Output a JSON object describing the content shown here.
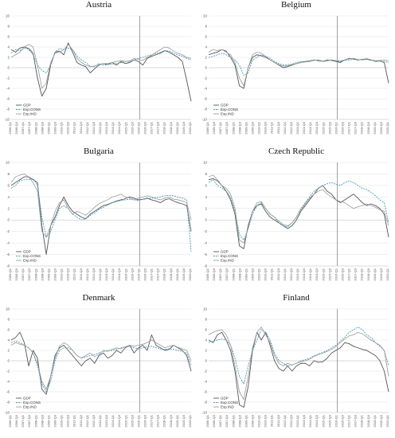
{
  "colors": {
    "gdp": "#555555",
    "cons": "#4a9bb0",
    "ind": "#9a9a9a",
    "vline": "#666666",
    "grid": "#d9d9d9"
  },
  "x_tick_labels": [
    "2006-Q1",
    "2006-Q3",
    "2007-Q1",
    "2007-Q3",
    "2008-Q1",
    "2008-Q3",
    "2009-Q1",
    "2009-Q3",
    "2010-Q1",
    "2010-Q3",
    "2011-Q1",
    "2011-Q3",
    "2012-Q1",
    "2012-Q3",
    "2013-Q1",
    "2013-Q3",
    "2014-Q1",
    "2014-Q3",
    "2015-Q1",
    "2015-Q3",
    "2016-Q1",
    "2016-Q3",
    "2017-Q1",
    "2017-Q3",
    "2018-Q1",
    "2018-Q3",
    "2019-Q1",
    "2019-Q3",
    "2020-Q1"
  ],
  "chart_data": [
    {
      "type": "line",
      "title": "Austria",
      "ylim": [
        -10,
        10
      ],
      "yticks": [
        -10,
        -8,
        -6,
        -4,
        -2,
        0,
        2,
        4,
        6,
        8,
        10
      ],
      "vline_at": "2016-Q1",
      "legend": [
        "GDP",
        "Exp.CONS",
        "Exp.IND"
      ],
      "series": [
        {
          "name": "GDP",
          "values": [
            3.5,
            3,
            3.8,
            4,
            3.7,
            2.8,
            -2,
            -5.5,
            -4,
            0.5,
            3,
            3.2,
            2.5,
            4.8,
            3,
            1,
            0.5,
            0.2,
            -1,
            -0.2,
            0.5,
            0.8,
            0.6,
            1,
            0.5,
            1.2,
            0.8,
            1,
            1.5,
            1.2,
            0.5,
            1.8,
            2.2,
            2.5,
            2.8,
            3.3,
            3,
            2.5,
            2,
            1.2,
            -2.5,
            -6.5
          ]
        },
        {
          "name": "Exp.CONS",
          "values": [
            2.8,
            3.5,
            3.3,
            3.8,
            3.5,
            2.5,
            0.5,
            -0.5,
            -1,
            0.5,
            3,
            3.7,
            3.5,
            3.8,
            3.5,
            2.3,
            1.5,
            1,
            0.3,
            0.2,
            0.8,
            0.5,
            0.6,
            0.7,
            0.8,
            1,
            1.2,
            1.2,
            1.5,
            1.8,
            2,
            2.3,
            2.5,
            2.7,
            3,
            3.3,
            3.2,
            2.8,
            2.5,
            2.2,
            1.8,
            1.5
          ]
        },
        {
          "name": "Exp.IND",
          "values": [
            2,
            2.5,
            3,
            4,
            4.5,
            4,
            0.5,
            -4,
            -3,
            1,
            2.8,
            3,
            3.5,
            4.5,
            3.5,
            1.8,
            1,
            0.5,
            0.2,
            0.3,
            0.6,
            0.8,
            0.8,
            1,
            1.2,
            1.4,
            1.2,
            1.3,
            1.8,
            1.6,
            1.4,
            2,
            2.4,
            3,
            3.5,
            4,
            3.8,
            3.2,
            2.8,
            2.5,
            2,
            1.8
          ]
        }
      ]
    },
    {
      "type": "line",
      "title": "Belgium",
      "ylim": [
        -10,
        10
      ],
      "yticks": [
        -10,
        -8,
        -6,
        -4,
        -2,
        0,
        2,
        4,
        6,
        8,
        10
      ],
      "vline_at": "2016-Q1",
      "legend": [
        "GDP",
        "Exp.CONS",
        "Exp.IND"
      ],
      "series": [
        {
          "name": "GDP",
          "values": [
            2.5,
            2.8,
            3,
            3.5,
            3.2,
            2,
            0.5,
            -3.5,
            -4,
            0,
            2,
            2.5,
            2.3,
            2,
            1.5,
            1,
            0.5,
            0,
            0.2,
            0.5,
            0.8,
            1,
            1.2,
            1.3,
            1.5,
            1.4,
            1.2,
            1.5,
            1.4,
            1.2,
            1,
            1.5,
            1.8,
            1.7,
            1.5,
            1.6,
            1.7,
            1.5,
            1.2,
            1.3,
            1,
            -3
          ]
        },
        {
          "name": "Exp.CONS",
          "values": [
            2,
            2.2,
            2.5,
            2.8,
            2.5,
            2,
            1.5,
            0.5,
            -1.5,
            -1,
            1.5,
            2,
            2.5,
            2.2,
            1.8,
            1.2,
            0.8,
            0.5,
            0.5,
            0.7,
            1,
            1.2,
            1.2,
            1.2,
            1.4,
            1.5,
            1.3,
            1.4,
            1.5,
            1.3,
            1.2,
            1.4,
            1.5,
            1.6,
            1.5,
            1.6,
            1.6,
            1.5,
            1.4,
            1.3,
            1.2,
            1
          ]
        },
        {
          "name": "Exp.IND",
          "values": [
            3,
            3.5,
            3.3,
            3.5,
            3,
            2.5,
            1,
            -2,
            -3.5,
            0,
            2.5,
            3,
            2.8,
            2.2,
            1.5,
            1,
            0.6,
            0.3,
            0.4,
            0.6,
            0.8,
            1,
            1.1,
            1.2,
            1.5,
            1.3,
            1.2,
            1.3,
            1.5,
            1.4,
            1.3,
            1.5,
            1.7,
            1.8,
            1.6,
            1.5,
            1.6,
            1.4,
            1.3,
            1.4,
            1.5,
            1.3
          ]
        }
      ]
    },
    {
      "type": "line",
      "title": "Bulgaria",
      "ylim": [
        -8,
        10
      ],
      "yticks": [
        -8,
        -6,
        -4,
        -2,
        0,
        2,
        4,
        6,
        8,
        10
      ],
      "vline_at": "2016-Q1",
      "legend": [
        "GDP",
        "Exp.CONS",
        "Exp.IND"
      ],
      "series": [
        {
          "name": "GDP",
          "values": [
            6,
            6.5,
            7,
            7.5,
            7.5,
            7,
            6.5,
            -1,
            -6,
            -1,
            0.5,
            2.5,
            4,
            2.5,
            1.5,
            1,
            0.5,
            0.2,
            1,
            1.5,
            2,
            2.5,
            2.7,
            3,
            3.3,
            3.5,
            3.7,
            4,
            3.8,
            3.5,
            3.6,
            3.8,
            3.5,
            3.3,
            3,
            3.5,
            3.7,
            3.3,
            3,
            2.8,
            2.5,
            -2
          ]
        },
        {
          "name": "Exp.CONS",
          "values": [
            5.5,
            6,
            6.8,
            7,
            7,
            7.2,
            6,
            0.5,
            -3,
            -2,
            0,
            2,
            2.5,
            2,
            1,
            0.5,
            0,
            0.2,
            0.8,
            1.2,
            1.8,
            2.2,
            2.6,
            3,
            3.2,
            3.4,
            3.5,
            3.6,
            3.5,
            3.4,
            3.6,
            3.7,
            3.8,
            3.9,
            4,
            4.2,
            4.3,
            4.2,
            4,
            3.8,
            3.5,
            -5.5
          ]
        },
        {
          "name": "Exp.IND",
          "values": [
            6.5,
            7.5,
            7.8,
            8,
            7.5,
            6.5,
            5,
            -2,
            -3,
            -1,
            1.5,
            3,
            3.5,
            2,
            1,
            1.5,
            1.2,
            0.8,
            1.5,
            2.2,
            2.8,
            3.2,
            3.5,
            4,
            4.2,
            4.5,
            4,
            3.8,
            3.5,
            3.8,
            4,
            4.2,
            4,
            3.7,
            3.5,
            3.8,
            4,
            3.6,
            3.5,
            3.3,
            3,
            0
          ]
        }
      ]
    },
    {
      "type": "line",
      "title": "Czech Republic",
      "ylim": [
        -8,
        10
      ],
      "yticks": [
        -8,
        -6,
        -4,
        -2,
        0,
        2,
        4,
        6,
        8,
        10
      ],
      "vline_at": "2016-Q1",
      "legend": [
        "GDP",
        "Exp.CONS",
        "Exp.IND"
      ],
      "series": [
        {
          "name": "GDP",
          "values": [
            7,
            7.2,
            6.8,
            6,
            5,
            3.5,
            1,
            -4.5,
            -5,
            -1,
            1.5,
            2.5,
            2.8,
            1.5,
            0.5,
            0,
            -0.5,
            -1,
            -1.5,
            -1,
            0,
            1.5,
            2.5,
            3.5,
            4.5,
            5.5,
            6,
            5,
            4.5,
            3.5,
            3,
            3.5,
            4,
            4.5,
            3.8,
            3,
            2.5,
            2.8,
            2.5,
            2,
            1,
            -3
          ]
        },
        {
          "name": "Exp.CONS",
          "values": [
            6.5,
            7,
            6,
            5.5,
            5,
            4,
            1.5,
            -2.5,
            -3.5,
            -1.5,
            1,
            2.5,
            3,
            2,
            1,
            0.5,
            -0.5,
            -1,
            -1.2,
            -0.5,
            0.5,
            2,
            3,
            4,
            5,
            5.5,
            6,
            6.3,
            6.5,
            6.2,
            6,
            6.5,
            6.8,
            6.5,
            6,
            5.5,
            5.3,
            4.8,
            4.2,
            3.5,
            3,
            -0.5
          ]
        },
        {
          "name": "Exp.IND",
          "values": [
            7.5,
            7.8,
            7,
            6,
            5.5,
            4.5,
            2,
            -3.5,
            -4,
            -1.5,
            1.5,
            3,
            3.2,
            2,
            1,
            0.5,
            -0.2,
            -0.8,
            -1,
            -0.5,
            0.5,
            1.8,
            2.8,
            3.8,
            4.5,
            5,
            5.3,
            4.5,
            4,
            3.5,
            3.2,
            3,
            2.5,
            2,
            2.3,
            2.5,
            2.8,
            2.5,
            2.2,
            1.8,
            1.5,
            -1
          ]
        }
      ]
    },
    {
      "type": "line",
      "title": "Denmark",
      "ylim": [
        -10,
        10
      ],
      "yticks": [
        -10,
        -8,
        -6,
        -4,
        -2,
        0,
        2,
        4,
        6,
        8,
        10
      ],
      "vline_at": "2016-Q1",
      "legend": [
        "GDP",
        "Exp.CONS",
        "Exp.IND"
      ],
      "series": [
        {
          "name": "GDP",
          "values": [
            4,
            4.5,
            5.5,
            3.5,
            -1,
            2,
            0.5,
            -5.5,
            -6.5,
            -3,
            1,
            2.5,
            3,
            2,
            1,
            0,
            -1,
            0,
            0.5,
            -0.5,
            1,
            1.5,
            0.5,
            1,
            2,
            1.5,
            2.5,
            3,
            1.5,
            2.5,
            3,
            2,
            5,
            3,
            2.5,
            2,
            2.2,
            3,
            2.5,
            2,
            1,
            -2
          ]
        },
        {
          "name": "Exp.CONS",
          "values": [
            3.5,
            3.8,
            3.5,
            3,
            2.5,
            1.5,
            -1,
            -4.5,
            -6,
            -4,
            0,
            2,
            2.5,
            2.5,
            2,
            1,
            0.5,
            0.7,
            1,
            1.2,
            1.5,
            1.8,
            2,
            2,
            2.2,
            2.5,
            2.7,
            2.8,
            2.5,
            2.3,
            2.5,
            2.7,
            2.8,
            2.5,
            2.3,
            2.2,
            2.3,
            2.2,
            2,
            1.8,
            1.5,
            -1
          ]
        },
        {
          "name": "Exp.IND",
          "values": [
            3,
            3.5,
            3.2,
            3,
            2.5,
            1.5,
            -0.5,
            -4,
            -5.5,
            -3,
            0.5,
            2.8,
            3.5,
            3,
            2,
            1,
            0.5,
            1,
            1.5,
            0.8,
            1.2,
            2,
            1.8,
            2.2,
            2.5,
            2.3,
            2.7,
            3,
            2.8,
            3,
            3.2,
            3.5,
            4,
            3.5,
            3,
            2.5,
            2.8,
            3,
            2.6,
            2.3,
            2,
            0
          ]
        }
      ]
    },
    {
      "type": "line",
      "title": "Finland",
      "ylim": [
        -10,
        10
      ],
      "yticks": [
        -10,
        -8,
        -6,
        -4,
        -2,
        0,
        2,
        4,
        6,
        8,
        10
      ],
      "vline_at": "2016-Q1",
      "legend": [
        "GDP",
        "Exp.CONS",
        "Exp.IND"
      ],
      "series": [
        {
          "name": "GDP",
          "values": [
            4,
            3.5,
            5,
            5.5,
            4,
            2,
            -2,
            -8.5,
            -9,
            -5,
            2,
            5.5,
            4,
            5.5,
            3,
            0,
            -1.5,
            -2,
            -1,
            -2,
            -1,
            -0.5,
            -0.5,
            -1,
            0,
            -0.3,
            -0.2,
            0.5,
            1.5,
            2,
            2.5,
            3.5,
            3.3,
            2.8,
            2.5,
            2.2,
            2,
            1.5,
            1,
            0,
            -2,
            -6
          ]
        },
        {
          "name": "Exp.CONS",
          "values": [
            3.5,
            3.8,
            4,
            4.2,
            4,
            3,
            0.5,
            -3,
            -4.5,
            -1,
            2,
            4,
            6,
            5.5,
            4,
            1.5,
            0,
            -0.5,
            -1,
            -0.8,
            -0.5,
            0,
            0.2,
            0.5,
            1,
            1.3,
            1.6,
            2,
            2.5,
            3,
            3.8,
            4.5,
            5.5,
            6,
            6.5,
            6,
            5,
            4.5,
            3.5,
            2.8,
            2,
            -1
          ]
        },
        {
          "name": "Exp.IND",
          "values": [
            5,
            5.5,
            5.8,
            6,
            5,
            3,
            -1,
            -6,
            -7.5,
            -3,
            2.5,
            5.5,
            6.5,
            5,
            3.5,
            1,
            -0.5,
            -1,
            -0.5,
            -0.8,
            -0.5,
            -0.2,
            0,
            0.3,
            0.8,
            1.2,
            1.5,
            1.8,
            2.2,
            2.8,
            3.5,
            4.2,
            4.8,
            5,
            5.5,
            5.2,
            4.6,
            4,
            3.5,
            3,
            2,
            -3
          ]
        }
      ]
    }
  ]
}
